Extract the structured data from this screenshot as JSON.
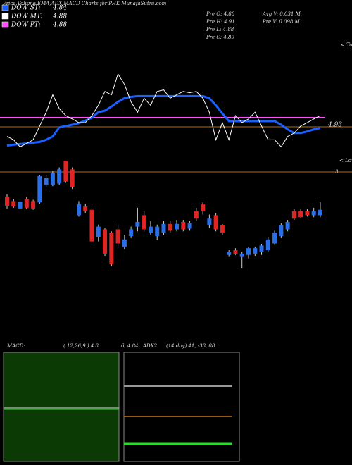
{
  "header": {
    "title": "Price,Volume,EMA,ADX,MACD Charts for PHK MunafaSutra.com",
    "pre_o": "Pre  O: 4.88",
    "pre_h": "Pre  H: 4.91",
    "pre_l": "Pre  L: 4.88",
    "pre_c": "Pre  C: 4.89",
    "avg_v": "Avg V: 0.031 M",
    "pre_v": "Pre  V: 0.098 M"
  },
  "chart_data": [
    {
      "type": "line",
      "legend": [
        {
          "name": "DOW ST:",
          "color": "#1a5fff",
          "value": 4.84
        },
        {
          "name": "DOW MT:",
          "color": "#ffffff",
          "value": 4.88
        },
        {
          "name": "DOW PT:",
          "color": "#ff4dff",
          "value": 4.88
        }
      ],
      "ylim": [
        4.75,
        5.17
      ],
      "tops_label": "< Tops",
      "lows_label": "< Lows",
      "level_label": "4.93",
      "level_label2": "3",
      "series": [
        {
          "name": "DOW ST:",
          "color": "#1a5fff",
          "values": [
            4.773,
            4.776,
            4.779,
            4.781,
            4.784,
            4.787,
            4.795,
            4.808,
            4.843,
            4.848,
            4.853,
            4.859,
            4.869,
            4.88,
            4.901,
            4.907,
            4.923,
            4.941,
            4.955,
            4.96,
            4.963,
            4.963,
            4.963,
            4.963,
            4.963,
            4.963,
            4.963,
            4.963,
            4.963,
            4.963,
            4.963,
            4.955,
            4.928,
            4.896,
            4.867,
            4.867,
            4.867,
            4.867,
            4.867,
            4.867,
            4.867,
            4.867,
            4.853,
            4.835,
            4.821,
            4.821,
            4.827,
            4.835,
            4.84
          ]
        },
        {
          "name": "DOW MT:",
          "color": "#ffffff",
          "values": [
            4.808,
            4.795,
            4.768,
            4.781,
            4.795,
            4.848,
            4.901,
            4.968,
            4.915,
            4.888,
            4.875,
            4.861,
            4.861,
            4.888,
            4.928,
            4.981,
            4.968,
            5.048,
            5.008,
            4.941,
            4.901,
            4.955,
            4.928,
            4.981,
            4.987,
            4.955,
            4.968,
            4.981,
            4.976,
            4.981,
            4.955,
            4.901,
            4.795,
            4.861,
            4.795,
            4.888,
            4.861,
            4.875,
            4.901,
            4.848,
            4.795,
            4.795,
            4.768,
            4.808,
            4.821,
            4.848,
            4.861,
            4.875,
            4.888
          ]
        }
      ]
    },
    {
      "type": "candlestick",
      "ylim": [
        4.82,
        5.0
      ],
      "up_color": "#2a6fe8",
      "down_color": "#e02424",
      "open": [
        4.946,
        4.94,
        4.929,
        4.943,
        4.94,
        4.938,
        4.964,
        4.964,
        4.966,
        5.0,
        4.987,
        4.919,
        4.932,
        4.927,
        4.887,
        4.898,
        4.893,
        4.898,
        4.872,
        4.888,
        4.902,
        4.919,
        4.893,
        4.888,
        4.893,
        4.906,
        4.898,
        4.909,
        4.899,
        4.925,
        4.935,
        4.904,
        4.919,
        4.904,
        4.86,
        4.867,
        4.857,
        4.86,
        4.862,
        4.864,
        4.867,
        4.877,
        4.888,
        4.898,
        4.925,
        4.925,
        4.925,
        4.919,
        4.919
      ],
      "high": [
        4.95,
        4.943,
        4.942,
        4.946,
        4.942,
        4.979,
        4.978,
        4.985,
        4.99,
        5.0,
        4.99,
        4.94,
        4.936,
        4.93,
        4.905,
        4.9,
        4.895,
        4.905,
        4.89,
        4.902,
        4.93,
        4.925,
        4.91,
        4.905,
        4.91,
        4.91,
        4.912,
        4.912,
        4.91,
        4.93,
        4.938,
        4.92,
        4.922,
        4.906,
        4.867,
        4.87,
        4.865,
        4.872,
        4.872,
        4.876,
        4.886,
        4.896,
        4.907,
        4.912,
        4.928,
        4.928,
        4.928,
        4.93,
        4.938
      ],
      "low": [
        4.929,
        4.93,
        4.926,
        4.928,
        4.927,
        4.936,
        4.96,
        4.962,
        4.964,
        4.967,
        4.958,
        4.917,
        4.922,
        4.878,
        4.88,
        4.858,
        4.843,
        4.87,
        4.868,
        4.885,
        4.895,
        4.895,
        4.89,
        4.882,
        4.89,
        4.893,
        4.895,
        4.895,
        4.896,
        4.91,
        4.92,
        4.9,
        4.895,
        4.89,
        4.857,
        4.86,
        4.84,
        4.855,
        4.858,
        4.86,
        4.865,
        4.875,
        4.885,
        4.895,
        4.912,
        4.914,
        4.917,
        4.916,
        4.916
      ],
      "close": [
        4.933,
        4.932,
        4.939,
        4.93,
        4.929,
        4.977,
        4.974,
        4.982,
        4.987,
        4.969,
        4.961,
        4.935,
        4.925,
        4.88,
        4.902,
        4.862,
        4.846,
        4.877,
        4.883,
        4.898,
        4.909,
        4.898,
        4.902,
        4.902,
        4.906,
        4.896,
        4.906,
        4.898,
        4.907,
        4.914,
        4.925,
        4.914,
        4.898,
        4.893,
        4.865,
        4.862,
        4.862,
        4.87,
        4.87,
        4.874,
        4.883,
        4.893,
        4.904,
        4.909,
        4.914,
        4.916,
        4.919,
        4.925,
        4.927
      ]
    },
    {
      "type": "indicator",
      "macd_label": "MACD:",
      "macd_params": "( 12,26,9 ) 4.8",
      "macd_values": "6, 4.84",
      "adx_label": "ADX2",
      "adx_text": "(14  day) 41,  -38,  88"
    }
  ]
}
